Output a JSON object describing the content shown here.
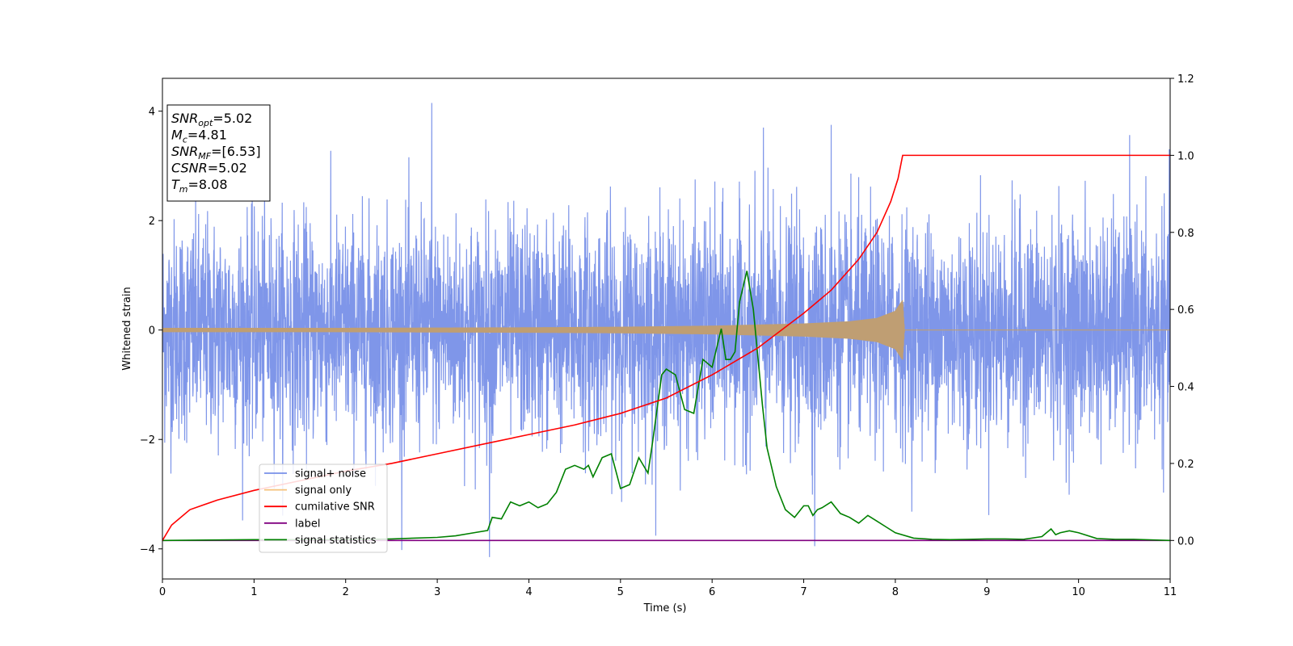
{
  "chart_data": {
    "type": "line",
    "xlabel": "Time (s)",
    "ylabel": "Whitened strain",
    "xlim": [
      0,
      11
    ],
    "ylim_left": [
      -4.55,
      4.6
    ],
    "ylim_right": [
      -0.1,
      1.2
    ],
    "x_ticks": [
      "0",
      "1",
      "2",
      "3",
      "4",
      "5",
      "6",
      "7",
      "8",
      "9",
      "10",
      "11"
    ],
    "y_left_ticks": [
      "−4",
      "−2",
      "0",
      "2",
      "4"
    ],
    "y_left_tick_values": [
      -4,
      -2,
      0,
      2,
      4
    ],
    "y_right_ticks": [
      "0.0",
      "0.2",
      "0.4",
      "0.6",
      "0.8",
      "1.0",
      "1.2"
    ],
    "y_right_tick_values": [
      0,
      0.2,
      0.4,
      0.6,
      0.8,
      1.0,
      1.2
    ],
    "info_box": [
      {
        "main": "SNR",
        "sub": "opt",
        "value": "=5.02"
      },
      {
        "main": "M",
        "sub": "c",
        "value": "=4.81"
      },
      {
        "main": "SNR",
        "sub": "MF",
        "value": "=[6.53]"
      },
      {
        "main": "CSNR",
        "sub": "",
        "value": "=5.02"
      },
      {
        "main": "T",
        "sub": "m",
        "value": "=8.08"
      }
    ],
    "legend_position": "lower-left",
    "series": [
      {
        "name": "signal+ noise",
        "color": "#7890e8",
        "axis": "left",
        "description": "whitened noise, roughly unit variance, peaks near ±3.5",
        "noise_std": 1.0,
        "peaks": [
          [
            2.94,
            4.15
          ],
          [
            3.57,
            -4.15
          ],
          [
            7.12,
            -3.95
          ],
          [
            6.56,
            3.7
          ],
          [
            7.3,
            3.75
          ]
        ]
      },
      {
        "name": "signal only",
        "color": "#f5c27a",
        "axis": "left",
        "description": "chirp growing in amplitude until merger at t≈8.08",
        "x": [
          0,
          2,
          4,
          5,
          6,
          7,
          7.5,
          7.8,
          8.0,
          8.08,
          8.1,
          11
        ],
        "amplitude": [
          0.04,
          0.04,
          0.05,
          0.06,
          0.08,
          0.12,
          0.16,
          0.22,
          0.35,
          0.55,
          0.0,
          0.0
        ]
      },
      {
        "name": "cumilative SNR",
        "color": "#ff0000",
        "axis": "right",
        "x": [
          0,
          0.1,
          0.3,
          0.6,
          1,
          1.5,
          2,
          2.5,
          3,
          3.5,
          4,
          4.5,
          5,
          5.5,
          6,
          6.5,
          7,
          7.3,
          7.6,
          7.8,
          7.95,
          8.03,
          8.08,
          9,
          10,
          11
        ],
        "values": [
          0.0,
          0.04,
          0.08,
          0.105,
          0.13,
          0.155,
          0.18,
          0.2,
          0.225,
          0.25,
          0.275,
          0.3,
          0.33,
          0.37,
          0.43,
          0.5,
          0.59,
          0.65,
          0.73,
          0.8,
          0.88,
          0.94,
          1.0,
          1.0,
          1.0,
          1.0
        ]
      },
      {
        "name": "label",
        "color": "#800080",
        "axis": "right",
        "x": [
          0,
          11
        ],
        "values": [
          0.0,
          0.0
        ]
      },
      {
        "name": "signal statistics",
        "color": "#008000",
        "axis": "right",
        "x": [
          0,
          1,
          2,
          2.5,
          3,
          3.2,
          3.4,
          3.55,
          3.6,
          3.7,
          3.8,
          3.9,
          4.0,
          4.1,
          4.2,
          4.3,
          4.4,
          4.5,
          4.6,
          4.65,
          4.7,
          4.8,
          4.9,
          5.0,
          5.1,
          5.2,
          5.3,
          5.35,
          5.45,
          5.5,
          5.6,
          5.7,
          5.8,
          5.9,
          6.0,
          6.1,
          6.15,
          6.2,
          6.25,
          6.3,
          6.38,
          6.45,
          6.55,
          6.6,
          6.7,
          6.8,
          6.9,
          7.0,
          7.05,
          7.1,
          7.15,
          7.2,
          7.3,
          7.4,
          7.5,
          7.6,
          7.7,
          7.8,
          7.9,
          8.0,
          8.2,
          8.4,
          8.6,
          8.8,
          9.0,
          9.2,
          9.4,
          9.6,
          9.7,
          9.75,
          9.8,
          9.9,
          10.0,
          10.2,
          10.4,
          10.6,
          11
        ],
        "values": [
          0.0,
          0.002,
          0.002,
          0.004,
          0.008,
          0.012,
          0.02,
          0.026,
          0.06,
          0.056,
          0.1,
          0.09,
          0.1,
          0.085,
          0.095,
          0.125,
          0.185,
          0.195,
          0.185,
          0.195,
          0.165,
          0.215,
          0.225,
          0.135,
          0.145,
          0.215,
          0.175,
          0.255,
          0.43,
          0.445,
          0.43,
          0.34,
          0.33,
          0.47,
          0.45,
          0.55,
          0.47,
          0.47,
          0.49,
          0.62,
          0.7,
          0.6,
          0.35,
          0.24,
          0.14,
          0.08,
          0.06,
          0.09,
          0.09,
          0.065,
          0.08,
          0.085,
          0.1,
          0.07,
          0.06,
          0.045,
          0.065,
          0.05,
          0.035,
          0.02,
          0.006,
          0.003,
          0.002,
          0.003,
          0.004,
          0.004,
          0.003,
          0.01,
          0.03,
          0.015,
          0.02,
          0.025,
          0.02,
          0.005,
          0.003,
          0.003,
          0.0
        ]
      }
    ]
  }
}
